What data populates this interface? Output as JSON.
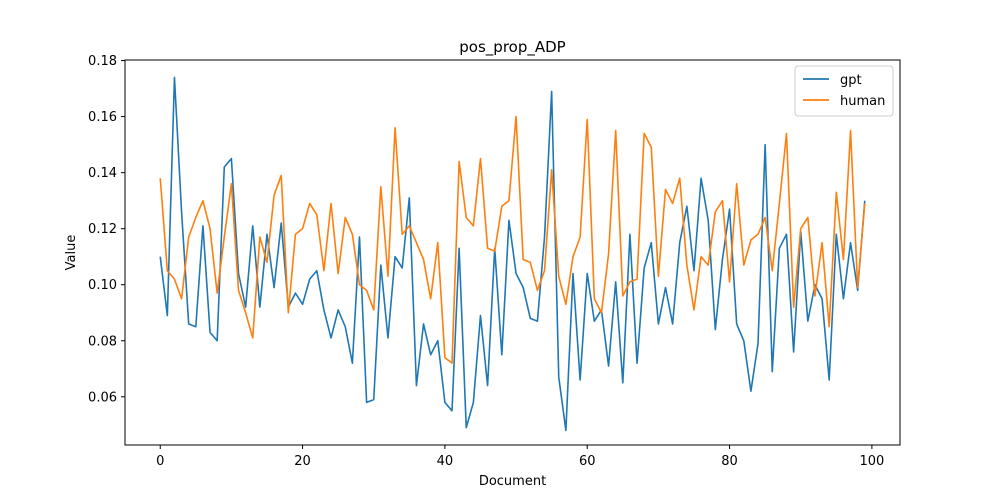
{
  "chart_data": {
    "type": "line",
    "title": "pos_prop_ADP",
    "xlabel": "Document",
    "ylabel": "Value",
    "xlim": [
      -4.95,
      103.95
    ],
    "ylim": [
      0.0428,
      0.1802
    ],
    "xticks": [
      0,
      20,
      40,
      60,
      80,
      100
    ],
    "yticks": [
      0.06,
      0.08,
      0.1,
      0.12,
      0.14,
      0.16,
      0.18
    ],
    "ytick_labels": [
      "0.06",
      "0.08",
      "0.10",
      "0.12",
      "0.14",
      "0.16",
      "0.18"
    ],
    "grid": false,
    "legend_position": "top-right",
    "x": [
      0,
      1,
      2,
      3,
      4,
      5,
      6,
      7,
      8,
      9,
      10,
      11,
      12,
      13,
      14,
      15,
      16,
      17,
      18,
      19,
      20,
      21,
      22,
      23,
      24,
      25,
      26,
      27,
      28,
      29,
      30,
      31,
      32,
      33,
      34,
      35,
      36,
      37,
      38,
      39,
      40,
      41,
      42,
      43,
      44,
      45,
      46,
      47,
      48,
      49,
      50,
      51,
      52,
      53,
      54,
      55,
      56,
      57,
      58,
      59,
      60,
      61,
      62,
      63,
      64,
      65,
      66,
      67,
      68,
      69,
      70,
      71,
      72,
      73,
      74,
      75,
      76,
      77,
      78,
      79,
      80,
      81,
      82,
      83,
      84,
      85,
      86,
      87,
      88,
      89,
      90,
      91,
      92,
      93,
      94,
      95,
      96,
      97,
      98,
      99
    ],
    "series": [
      {
        "name": "gpt",
        "color": "#1f77b4",
        "values": [
          0.11,
          0.089,
          0.174,
          0.126,
          0.086,
          0.085,
          0.121,
          0.083,
          0.08,
          0.142,
          0.145,
          0.104,
          0.092,
          0.121,
          0.092,
          0.118,
          0.099,
          0.122,
          0.092,
          0.097,
          0.093,
          0.102,
          0.105,
          0.091,
          0.081,
          0.091,
          0.085,
          0.072,
          0.117,
          0.058,
          0.059,
          0.107,
          0.081,
          0.11,
          0.106,
          0.131,
          0.064,
          0.086,
          0.075,
          0.08,
          0.058,
          0.055,
          0.113,
          0.049,
          0.058,
          0.089,
          0.064,
          0.113,
          0.075,
          0.123,
          0.104,
          0.099,
          0.088,
          0.087,
          0.117,
          0.169,
          0.067,
          0.048,
          0.104,
          0.066,
          0.104,
          0.087,
          0.091,
          0.071,
          0.101,
          0.065,
          0.118,
          0.072,
          0.106,
          0.115,
          0.086,
          0.099,
          0.086,
          0.115,
          0.128,
          0.105,
          0.138,
          0.123,
          0.084,
          0.109,
          0.127,
          0.086,
          0.08,
          0.062,
          0.079,
          0.15,
          0.069,
          0.113,
          0.118,
          0.076,
          0.119,
          0.087,
          0.1,
          0.095,
          0.066,
          0.118,
          0.095,
          0.115,
          0.098,
          0.13
        ]
      },
      {
        "name": "human",
        "color": "#ff7f0e",
        "values": [
          0.138,
          0.105,
          0.102,
          0.095,
          0.117,
          0.124,
          0.13,
          0.12,
          0.097,
          0.117,
          0.136,
          0.098,
          0.09,
          0.081,
          0.117,
          0.108,
          0.132,
          0.139,
          0.09,
          0.118,
          0.12,
          0.129,
          0.125,
          0.105,
          0.129,
          0.104,
          0.124,
          0.118,
          0.1,
          0.098,
          0.091,
          0.135,
          0.103,
          0.156,
          0.118,
          0.121,
          0.115,
          0.109,
          0.095,
          0.115,
          0.074,
          0.072,
          0.144,
          0.124,
          0.121,
          0.145,
          0.113,
          0.112,
          0.128,
          0.13,
          0.16,
          0.109,
          0.108,
          0.098,
          0.105,
          0.141,
          0.103,
          0.093,
          0.11,
          0.117,
          0.159,
          0.095,
          0.09,
          0.111,
          0.155,
          0.096,
          0.101,
          0.102,
          0.154,
          0.149,
          0.103,
          0.134,
          0.129,
          0.138,
          0.107,
          0.091,
          0.11,
          0.107,
          0.126,
          0.13,
          0.101,
          0.136,
          0.107,
          0.116,
          0.118,
          0.124,
          0.105,
          0.129,
          0.154,
          0.092,
          0.12,
          0.124,
          0.096,
          0.115,
          0.085,
          0.133,
          0.109,
          0.155,
          0.099,
          0.129
        ]
      }
    ]
  }
}
